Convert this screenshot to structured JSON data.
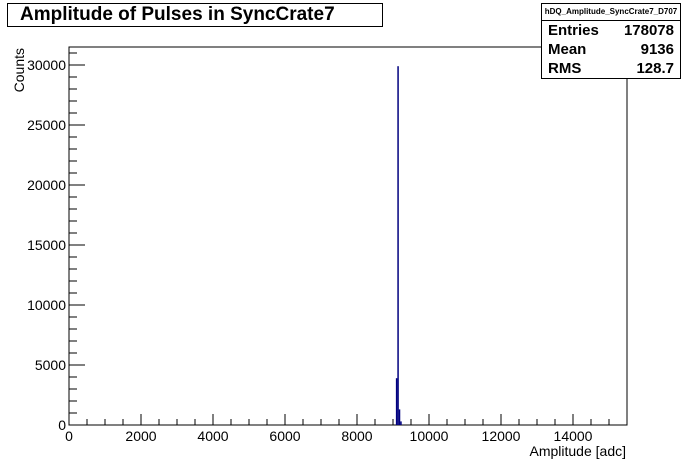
{
  "chart_data": {
    "type": "bar",
    "title": "Amplitude of Pulses in SyncCrate7",
    "xlabel": "Amplitude [adc]",
    "ylabel": "Counts",
    "xlim": [
      0,
      15500
    ],
    "ylim": [
      0,
      31500
    ],
    "x_ticks": [
      0,
      2000,
      4000,
      6000,
      8000,
      10000,
      12000,
      14000
    ],
    "y_ticks": [
      0,
      5000,
      10000,
      15000,
      20000,
      25000,
      30000
    ],
    "bin_width": 40,
    "series": [
      {
        "color": "#00007f",
        "bins": [
          {
            "x": 9080,
            "value": 3900
          },
          {
            "x": 9120,
            "value": 29900
          },
          {
            "x": 9160,
            "value": 1300
          },
          {
            "x": 9200,
            "value": 300
          }
        ]
      }
    ],
    "stats": {
      "name": "hDQ_Amplitude_SyncCrate7_D707",
      "rows": [
        {
          "label": "Entries",
          "value": "178078"
        },
        {
          "label": "Mean",
          "value": "9136"
        },
        {
          "label": "RMS",
          "value": "128.7"
        }
      ]
    }
  }
}
